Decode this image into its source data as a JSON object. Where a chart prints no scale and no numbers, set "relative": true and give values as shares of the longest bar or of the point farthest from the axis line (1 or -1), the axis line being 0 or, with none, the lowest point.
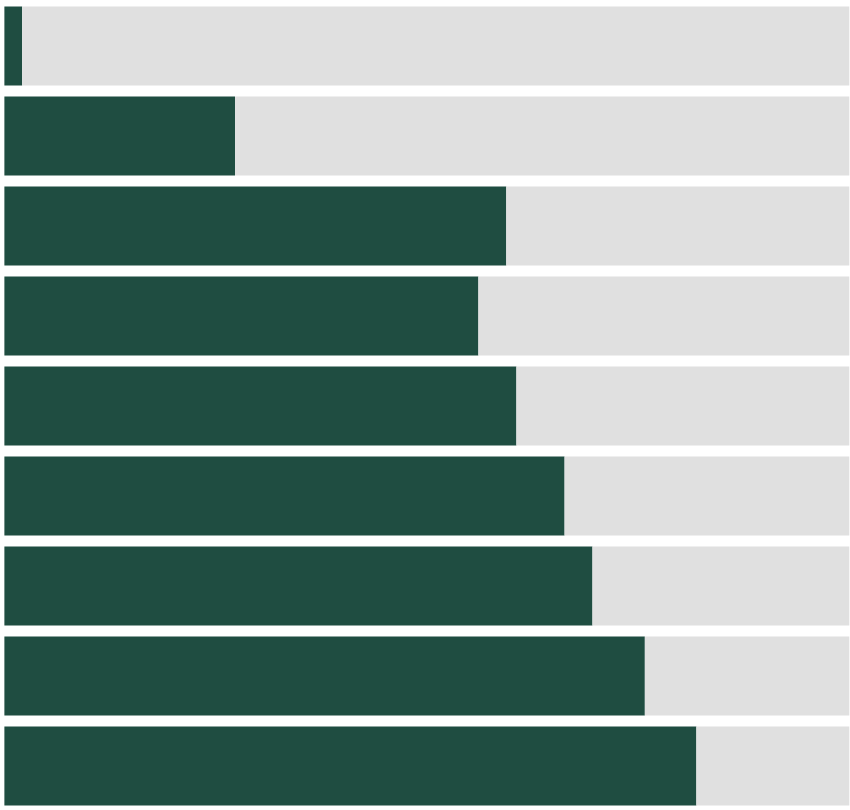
{
  "chart_data": {
    "type": "bar",
    "orientation": "horizontal",
    "stacked": true,
    "relative": true,
    "categories": [
      null,
      null,
      null,
      null,
      null,
      null,
      null,
      null,
      null
    ],
    "series": [
      {
        "color": "#1f4d41",
        "values": [
          0.021,
          0.273,
          0.594,
          0.561,
          0.606,
          0.663,
          0.696,
          0.758,
          0.819
        ]
      },
      {
        "color": "#e0e0e0",
        "values": [
          0.979,
          0.727,
          0.406,
          0.439,
          0.394,
          0.337,
          0.304,
          0.242,
          0.181
        ]
      }
    ]
  }
}
